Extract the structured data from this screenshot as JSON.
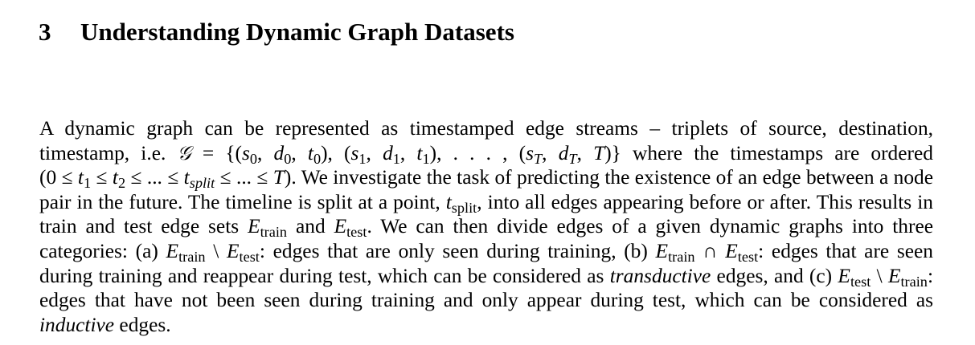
{
  "heading": {
    "number": "3",
    "title": "Understanding Dynamic Graph Datasets"
  },
  "paragraph": {
    "s1": "A dynamic graph can be represented as timestamped edge streams – triplets of source, destination, timestamp, i.e.",
    "eq_graph": "𝒢 = {(s0, d0, t0), (s1, d1, t1), . . . , (sT, dT, T)}",
    "s2": "where the timestamps are ordered",
    "eq_order": "(0 ≤ t1 ≤ t2 ≤ ... ≤ tsplit ≤ ... ≤ T).",
    "s3": "We investigate the task of predicting the existence of an edge between a node pair in the future. The timeline is split at a point,",
    "t_split": "tsplit",
    "s4": ", into all edges appearing before or after. This results in train and test edge sets",
    "e_train": "Etrain",
    "and": "and",
    "e_test": "Etest",
    "s5": ". We can then divide edges of a given dynamic graphs into three categories: (a)",
    "cat_a": "Etrain \\ Etest",
    "s6": ": edges that are only seen during training, (b)",
    "cat_b": "Etrain ∩ Etest",
    "s7": ": edges that are seen during training and reappear during test, which can be considered as",
    "transductive": "transductive",
    "s8": "edges, and (c)",
    "cat_c": "Etest \\ Etrain",
    "s9": ": edges that have not been seen during training and only appear during test, which can be considered as",
    "inductive": "inductive",
    "s10": "edges."
  }
}
